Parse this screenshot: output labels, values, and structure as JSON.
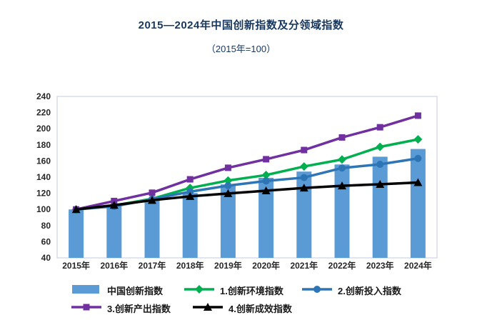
{
  "page": {
    "title": "2015—2024年中国创新指数及分领域指数",
    "subtitle": "（2015年=100）"
  },
  "chart_data": {
    "type": "bar",
    "subtype": "bar-line-combo",
    "title": "2015—2024年中国创新指数及分领域指数",
    "subtitle": "（2015年=100）",
    "categories": [
      "2015年",
      "2016年",
      "2017年",
      "2018年",
      "2019年",
      "2020年",
      "2021年",
      "2022年",
      "2023年",
      "2024年"
    ],
    "bar_series": {
      "name": "中国创新指数",
      "color": "#5B9BD5",
      "values": [
        100,
        105.7,
        112.4,
        120.4,
        131.0,
        139.2,
        146.9,
        155.7,
        165.3,
        174.9
      ]
    },
    "line_series": [
      {
        "name": "1.创新环境指数",
        "marker": "diamond",
        "color": "#00B050",
        "values": [
          100,
          104.8,
          113.2,
          126.6,
          135.8,
          142.6,
          153.2,
          161.9,
          177.5,
          186.8
        ]
      },
      {
        "name": "2.创新投入指数",
        "marker": "circle",
        "color": "#2E75B6",
        "values": [
          100,
          103.8,
          112.6,
          122.0,
          129.5,
          135.2,
          139.5,
          151.3,
          155.9,
          163.2
        ]
      },
      {
        "name": "3.创新产出指数",
        "marker": "square",
        "color": "#7030A0",
        "values": [
          100,
          110.4,
          120.7,
          137.3,
          151.6,
          162.2,
          173.6,
          189.2,
          201.8,
          216.2
        ]
      },
      {
        "name": "4.创新成效指数",
        "marker": "triangle",
        "color": "#000000",
        "values": [
          100,
          105.3,
          111.4,
          116.2,
          119.8,
          123.2,
          126.6,
          129.3,
          131.2,
          133.4
        ]
      }
    ],
    "ylim": [
      40,
      240
    ],
    "yticks": [
      40,
      60,
      80,
      100,
      120,
      140,
      160,
      180,
      200,
      220,
      240
    ],
    "xlabel": "",
    "ylabel": "",
    "grid": false,
    "legend_position": "bottom",
    "plot_border_color": "#c5cbe3",
    "tick_label_color": "#262626"
  }
}
